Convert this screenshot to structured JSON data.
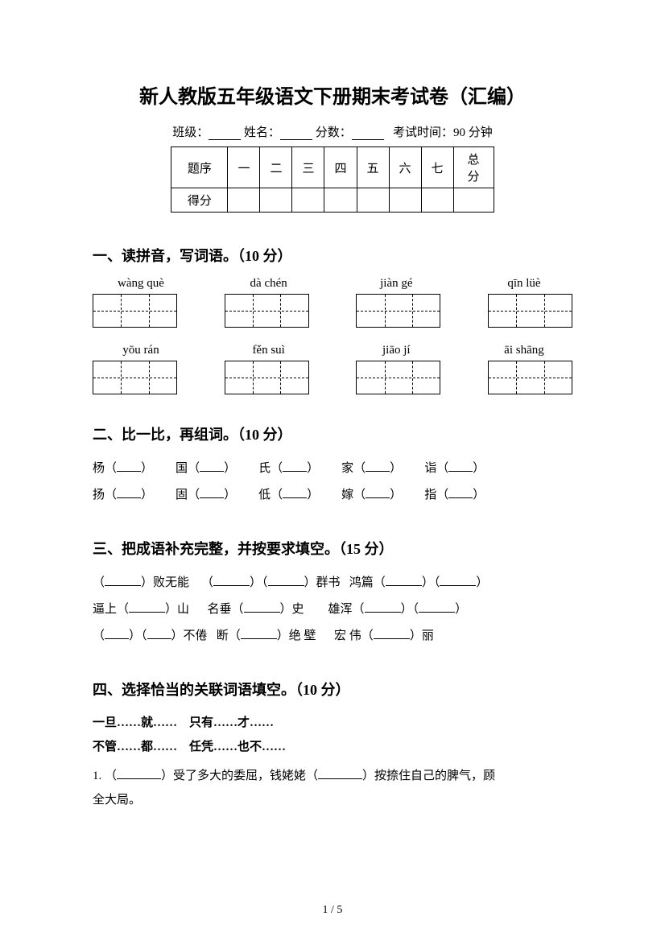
{
  "title": "新人教版五年级语文下册期末考试卷（汇编）",
  "meta": {
    "class_label": "班级：",
    "name_label": "姓名：",
    "score_label": "分数：",
    "exam_time": "考试时间：90 分钟"
  },
  "score_table": {
    "row1_head": "题序",
    "cols": [
      "一",
      "二",
      "三",
      "四",
      "五",
      "六",
      "七"
    ],
    "total": "总分",
    "row2_head": "得分"
  },
  "section1": {
    "heading": "一、读拼音，写词语。（10 分）",
    "row1_pinyin": [
      "wàng què",
      "dà chén",
      "jiàn gé",
      "qīn lüè"
    ],
    "row2_pinyin": [
      "yōu rán",
      "fěn suì",
      "jiāo jí",
      "āi shāng"
    ]
  },
  "section2": {
    "heading": "二、比一比，再组词。（10 分）",
    "line1": [
      "杨",
      "国",
      "氏",
      "家",
      "诣"
    ],
    "line2": [
      "扬",
      "固",
      "低",
      "嫁",
      "指"
    ]
  },
  "section3": {
    "heading": "三、把成语补充完整，并按要求填空。（15 分）"
  },
  "section4": {
    "heading": "四、选择恰当的关联词语填空。（10 分）",
    "opt_a": "一旦……就……",
    "opt_b": "只有……才……",
    "opt_c": "不管……都……",
    "opt_d": "任凭……也不……",
    "item1_pre": "1. （",
    "item1_mid1": "）受了多大的委屈，钱姥姥（",
    "item1_mid2": "）按捺住自己的脾气，顾",
    "item1_end": "全大局。"
  },
  "footer": "1 / 5"
}
